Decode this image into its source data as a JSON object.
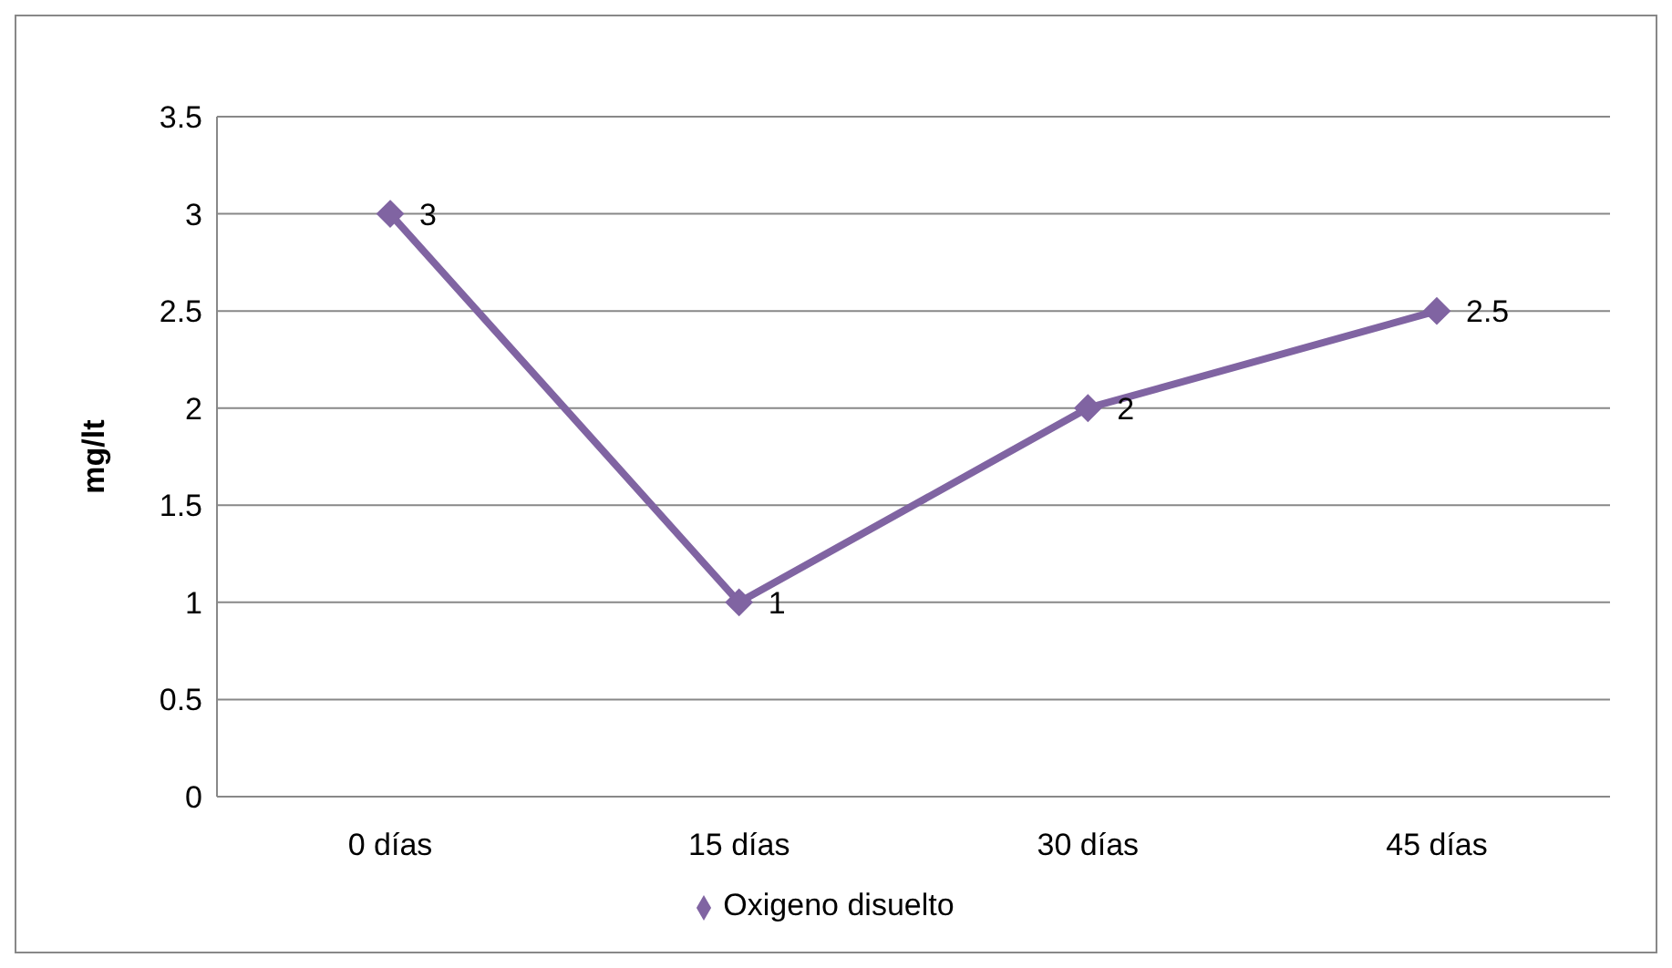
{
  "chart_data": {
    "type": "line",
    "ylabel": "mg/lt",
    "categories": [
      "0 días",
      "15 días",
      "30 días",
      "45 días"
    ],
    "series": [
      {
        "name": "Oxigeno disuelto",
        "color": "#8064a2",
        "values": [
          3,
          1,
          2,
          2.5
        ]
      }
    ],
    "ylim": [
      0,
      3.5
    ],
    "yticks": [
      0,
      0.5,
      1,
      1.5,
      2,
      2.5,
      3,
      3.5
    ],
    "grid": "y",
    "legend": "bottom",
    "marker": "diamond",
    "data_labels": true
  }
}
